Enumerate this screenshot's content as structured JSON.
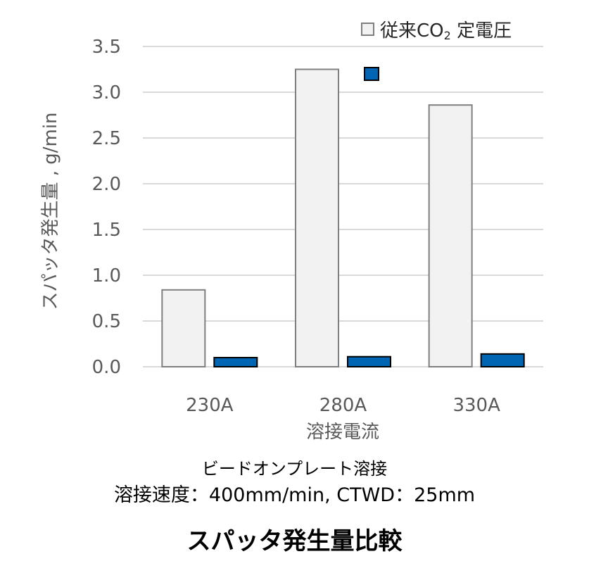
{
  "chart_data": {
    "type": "bar",
    "categories": [
      "230A",
      "280A",
      "330A"
    ],
    "series": [
      {
        "name": "従来CO2 定電圧",
        "name_main": "従来CO",
        "name_sub": "2",
        "name_rest": " 定電圧",
        "values": [
          0.84,
          3.25,
          2.86
        ],
        "color": "#f2f2f2",
        "border": "#7f7f7f"
      },
      {
        "values": [
          0.1,
          0.11,
          0.14
        ],
        "color": "#0066b3",
        "border": "#000000"
      }
    ],
    "ylim": [
      0,
      3.5
    ],
    "yticks": [
      "0.0",
      "0.5",
      "1.0",
      "1.5",
      "2.0",
      "2.5",
      "3.0",
      "3.5"
    ],
    "xlabel": "溶接電流",
    "ylabel": "スパッタ発生量 , g/min",
    "grid": true,
    "legend_position": "top-right"
  },
  "caption": {
    "line1": "ビードオンプレート溶接",
    "line2": "溶接速度：400mm/min, CTWD：25mm"
  },
  "figure_title": "スパッタ発生量比較"
}
